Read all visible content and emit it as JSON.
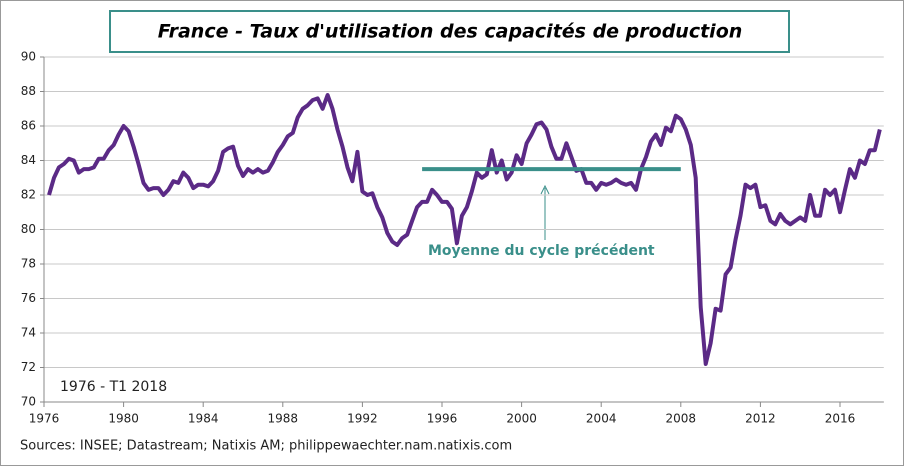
{
  "chart_data": {
    "type": "line",
    "title": "France - Taux d'utilisation des capacités de production",
    "period_label": "1976 - T1 2018",
    "source": "Sources: INSEE;  Datastream;  Natixis AM; philippewaechter.nam.natixis.com",
    "annotation": "Moyenne du cycle précédent",
    "xlim": [
      1976,
      2018.2
    ],
    "ylim": [
      70,
      90
    ],
    "xticks": [
      1976,
      1980,
      1984,
      1988,
      1992,
      1996,
      2000,
      2004,
      2008,
      2012,
      2016
    ],
    "yticks": [
      70,
      72,
      74,
      76,
      78,
      80,
      82,
      84,
      86,
      88,
      90
    ],
    "grid": true,
    "series": [
      {
        "color": "#5b2a86",
        "x": [
          1976.25,
          1976.5,
          1976.75,
          1977,
          1977.25,
          1977.5,
          1977.75,
          1978,
          1978.25,
          1978.5,
          1978.75,
          1979,
          1979.25,
          1979.5,
          1979.75,
          1980,
          1980.25,
          1980.5,
          1980.75,
          1981,
          1981.25,
          1981.5,
          1981.75,
          1982,
          1982.25,
          1982.5,
          1982.75,
          1983,
          1983.25,
          1983.5,
          1983.75,
          1984,
          1984.25,
          1984.5,
          1984.75,
          1985,
          1985.25,
          1985.5,
          1985.75,
          1986,
          1986.25,
          1986.5,
          1986.75,
          1987,
          1987.25,
          1987.5,
          1987.75,
          1988,
          1988.25,
          1988.5,
          1988.75,
          1989,
          1989.25,
          1989.5,
          1989.75,
          1990,
          1990.25,
          1990.5,
          1990.75,
          1991,
          1991.25,
          1991.5,
          1991.75,
          1992,
          1992.25,
          1992.5,
          1992.75,
          1993,
          1993.25,
          1993.5,
          1993.75,
          1994,
          1994.25,
          1994.5,
          1994.75,
          1995,
          1995.25,
          1995.5,
          1995.75,
          1996,
          1996.25,
          1996.5,
          1996.75,
          1997,
          1997.25,
          1997.5,
          1997.75,
          1998,
          1998.25,
          1998.5,
          1998.75,
          1999,
          1999.25,
          1999.5,
          1999.75,
          2000,
          2000.25,
          2000.5,
          2000.75,
          2001,
          2001.25,
          2001.5,
          2001.75,
          2002,
          2002.25,
          2002.5,
          2002.75,
          2003,
          2003.25,
          2003.5,
          2003.75,
          2004,
          2004.25,
          2004.5,
          2004.75,
          2005,
          2005.25,
          2005.5,
          2005.75,
          2006,
          2006.25,
          2006.5,
          2006.75,
          2007,
          2007.25,
          2007.5,
          2007.75,
          2008,
          2008.25,
          2008.5,
          2008.75,
          2009,
          2009.25,
          2009.5,
          2009.75,
          2010,
          2010.25,
          2010.5,
          2010.75,
          2011,
          2011.25,
          2011.5,
          2011.75,
          2012,
          2012.25,
          2012.5,
          2012.75,
          2013,
          2013.25,
          2013.5,
          2013.75,
          2014,
          2014.25,
          2014.5,
          2014.75,
          2015,
          2015.25,
          2015.5,
          2015.75,
          2016,
          2016.25,
          2016.5,
          2016.75,
          2017,
          2017.25,
          2017.5,
          2017.75,
          2018
        ],
        "values": [
          82,
          83,
          83.6,
          83.8,
          84.1,
          84.0,
          83.3,
          83.5,
          83.5,
          83.6,
          84.1,
          84.1,
          84.6,
          84.9,
          85.5,
          86.0,
          85.7,
          84.8,
          83.8,
          82.7,
          82.3,
          82.4,
          82.4,
          82.0,
          82.3,
          82.8,
          82.7,
          83.3,
          83.0,
          82.4,
          82.6,
          82.6,
          82.5,
          82.8,
          83.4,
          84.5,
          84.7,
          84.8,
          83.7,
          83.1,
          83.5,
          83.3,
          83.5,
          83.3,
          83.4,
          83.9,
          84.5,
          84.9,
          85.4,
          85.6,
          86.5,
          87.0,
          87.2,
          87.5,
          87.6,
          87.0,
          87.8,
          87.0,
          85.8,
          84.8,
          83.6,
          82.8,
          84.5,
          82.2,
          82.0,
          82.1,
          81.3,
          80.7,
          79.8,
          79.3,
          79.1,
          79.5,
          79.7,
          80.5,
          81.3,
          81.6,
          81.6,
          82.3,
          82.0,
          81.6,
          81.6,
          81.2,
          79.2,
          80.8,
          81.3,
          82.2,
          83.3,
          83.0,
          83.2,
          84.6,
          83.3,
          84.0,
          82.9,
          83.3,
          84.3,
          83.8,
          85.0,
          85.5,
          86.1,
          86.2,
          85.8,
          84.8,
          84.1,
          84.1,
          85.0,
          84.2,
          83.4,
          83.5,
          82.7,
          82.7,
          82.3,
          82.7,
          82.6,
          82.7,
          82.9,
          82.7,
          82.6,
          82.7,
          82.3,
          83.5,
          84.2,
          85.1,
          85.5,
          84.9,
          85.9,
          85.7,
          86.6,
          86.4,
          85.8,
          84.9,
          83.0,
          75.5,
          72.2,
          73.4,
          75.4,
          75.3,
          77.4,
          77.8,
          79.4,
          80.8,
          82.6,
          82.4,
          82.6,
          81.3,
          81.4,
          80.5,
          80.3,
          80.9,
          80.5,
          80.3,
          80.5,
          80.7,
          80.5,
          82.0,
          80.8,
          80.8,
          82.3,
          82.0,
          82.3,
          81.0,
          82.3,
          83.5,
          83.0,
          84.0,
          83.8,
          84.6,
          84.6,
          85.8
        ]
      },
      {
        "color": "#3a8f8a",
        "x": [
          1995,
          2008
        ],
        "values": [
          83.5,
          83.5
        ]
      }
    ]
  }
}
